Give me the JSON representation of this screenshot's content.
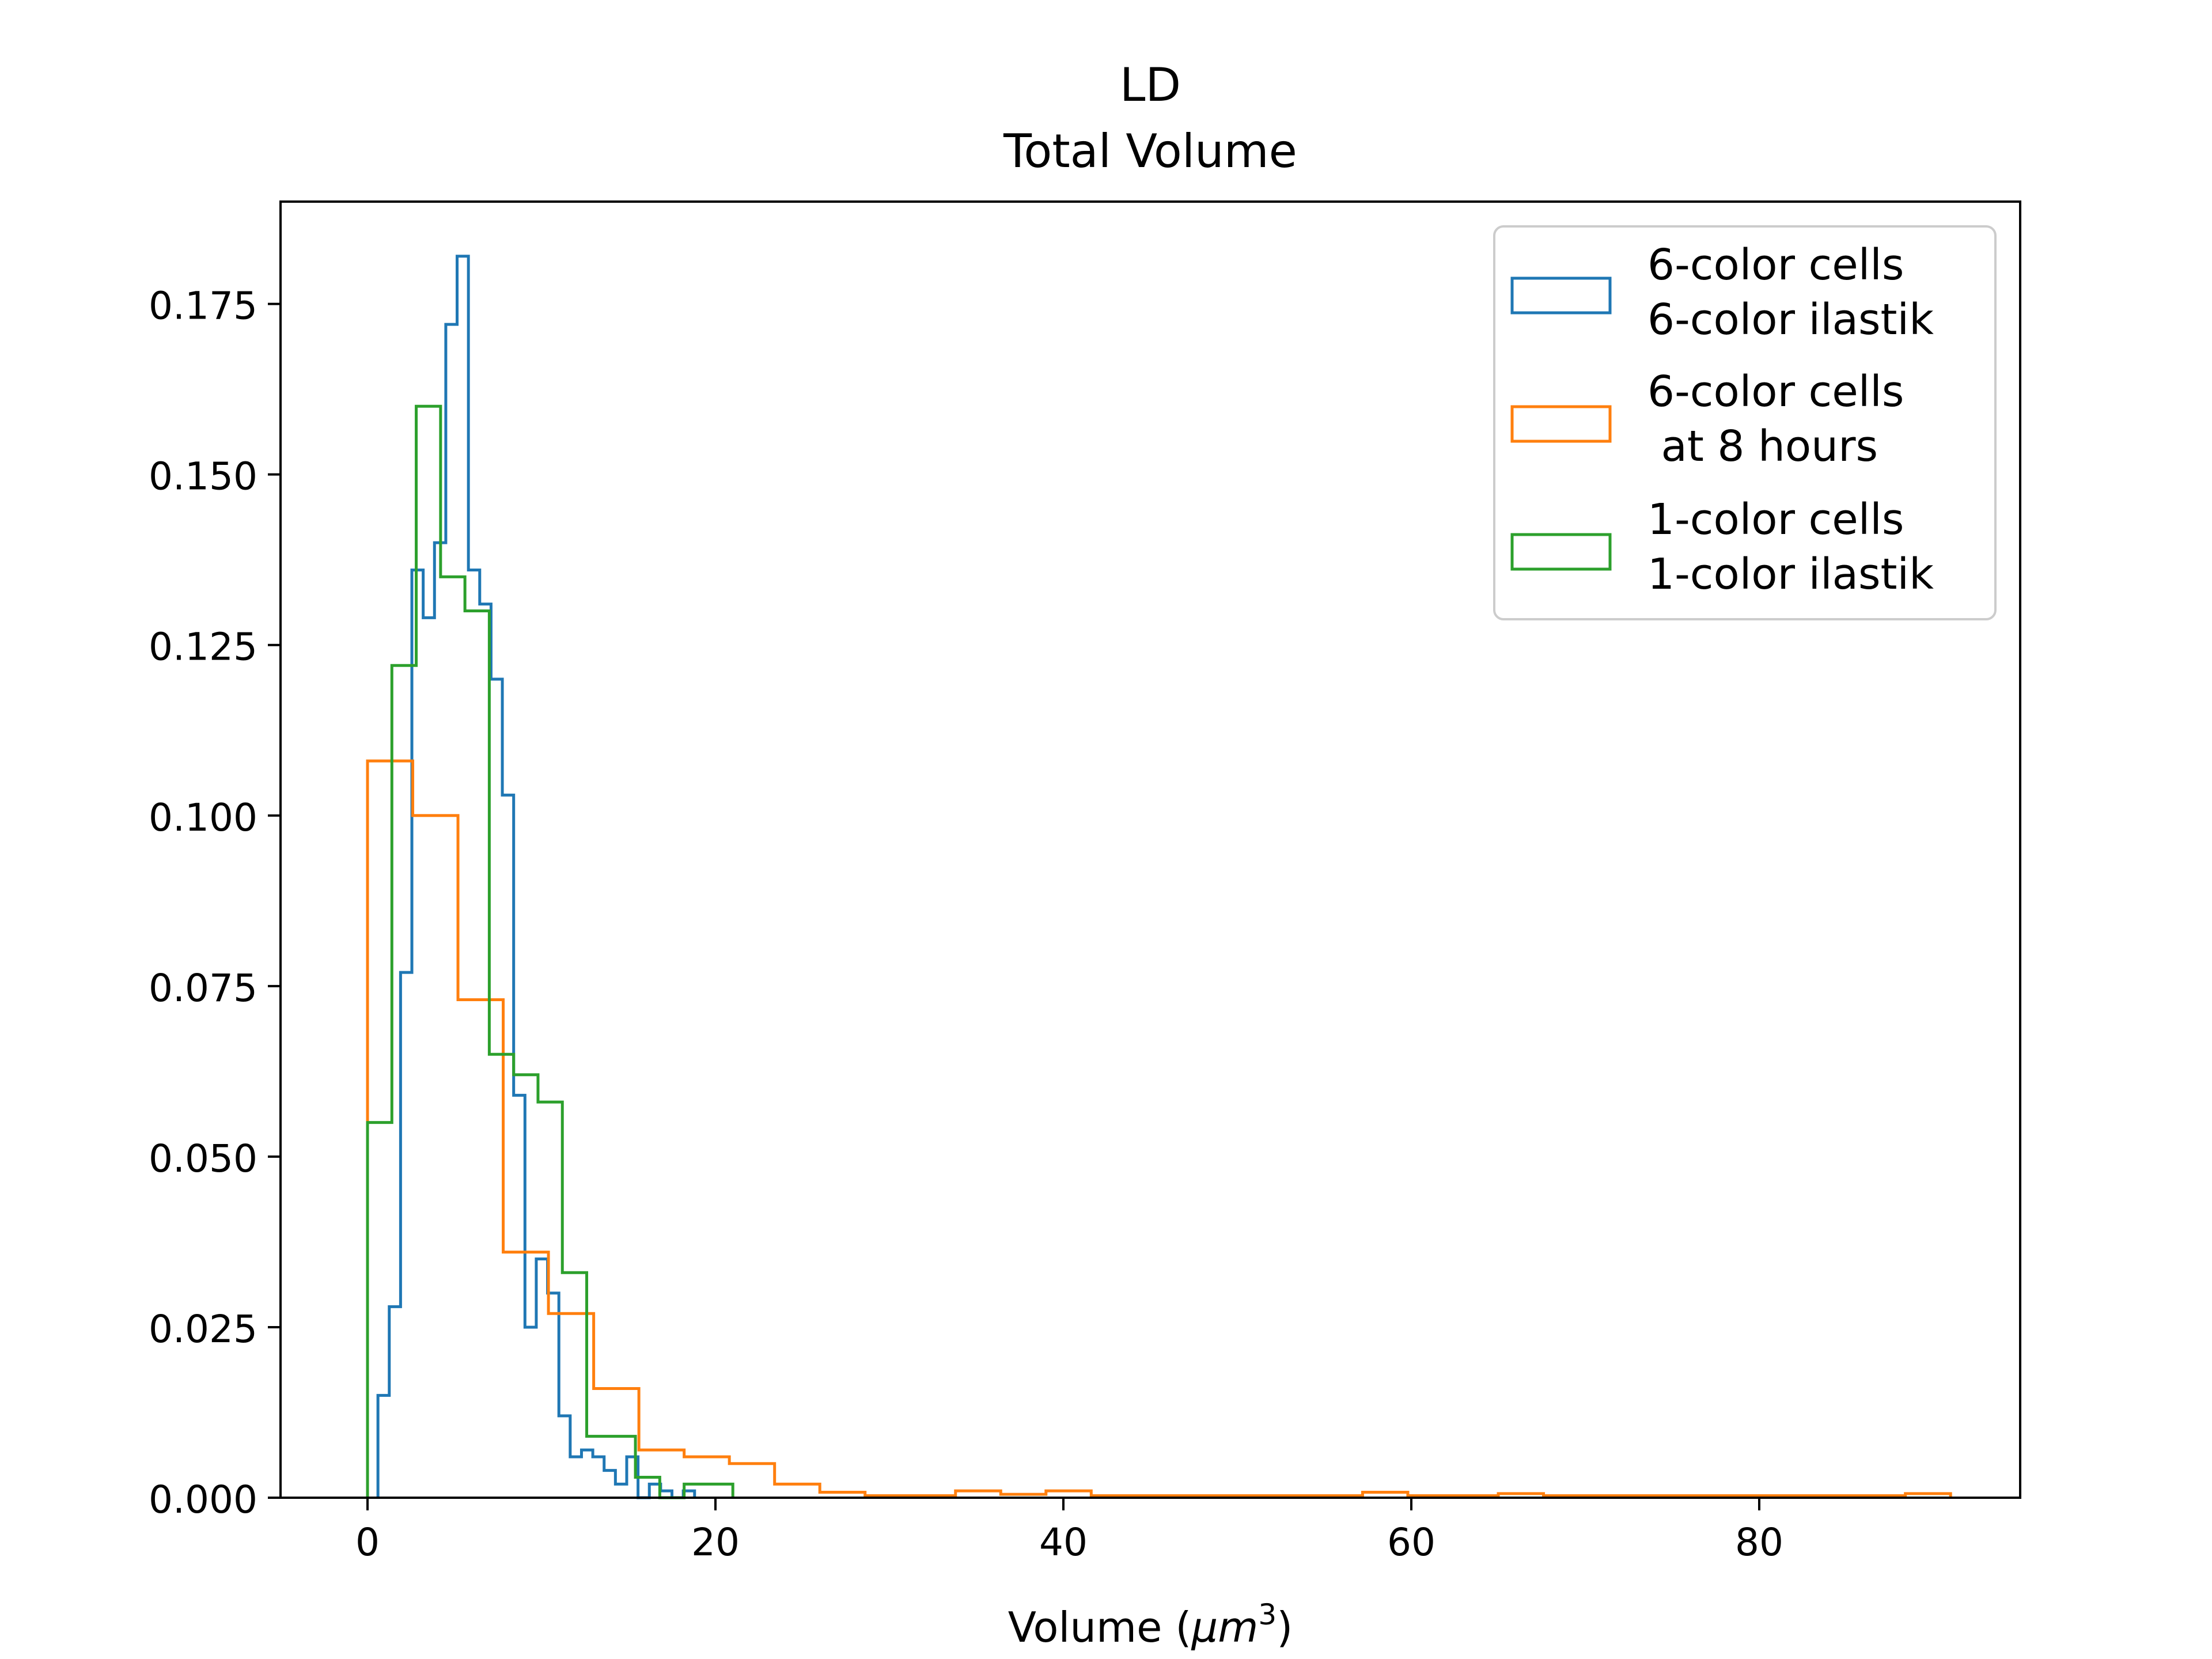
{
  "chart_data": {
    "type": "histogram",
    "title": "LD",
    "subtitle": "Total Volume",
    "xlabel_prefix": "Volume (",
    "xlabel_unit": "μm",
    "xlabel_exp": "3",
    "xlabel_suffix": ")",
    "ylabel": "",
    "xlim": [
      -5,
      95
    ],
    "ylim": [
      0,
      0.19
    ],
    "x_ticks": [
      0,
      20,
      40,
      60,
      80
    ],
    "x_tick_labels": [
      "0",
      "20",
      "40",
      "60",
      "80"
    ],
    "y_ticks": [
      0.0,
      0.025,
      0.05,
      0.075,
      0.1,
      0.125,
      0.15,
      0.175
    ],
    "y_tick_labels": [
      "0.000",
      "0.025",
      "0.050",
      "0.075",
      "0.100",
      "0.125",
      "0.150",
      "0.175"
    ],
    "grid": false,
    "legend_position": "top-right",
    "series": [
      {
        "name_line1": "6-color cells",
        "name_line2": "6-color ilastik",
        "color": "#1f77b4",
        "histtype": "step",
        "bins": [
          0.6,
          1.25,
          1.9,
          2.55,
          3.2,
          3.85,
          4.5,
          5.15,
          5.8,
          6.45,
          7.1,
          7.75,
          8.4,
          9.05,
          9.7,
          10.35,
          11.0,
          11.65,
          12.3,
          12.95,
          13.6,
          14.25,
          14.9,
          15.55,
          16.2,
          16.85,
          17.5,
          18.15,
          18.8
        ],
        "values": [
          0.015,
          0.028,
          0.077,
          0.136,
          0.129,
          0.14,
          0.172,
          0.182,
          0.136,
          0.131,
          0.12,
          0.103,
          0.059,
          0.025,
          0.035,
          0.03,
          0.012,
          0.006,
          0.007,
          0.006,
          0.004,
          0.002,
          0.006,
          0.0,
          0.002,
          0.001,
          0.0,
          0.001
        ]
      },
      {
        "name_line1": "6-color cells",
        "name_line2": " at 8 hours",
        "color": "#ff7f0e",
        "histtype": "step",
        "bins": [
          0.0,
          2.6,
          5.2,
          7.8,
          10.4,
          13.0,
          15.6,
          18.2,
          20.8,
          23.4,
          26.0,
          28.6,
          31.2,
          33.8,
          36.4,
          39.0,
          41.6,
          44.2,
          46.8,
          49.4,
          52.0,
          54.6,
          57.2,
          59.8,
          62.4,
          65.0,
          67.6,
          70.2,
          72.8,
          75.4,
          78.0,
          80.6,
          83.2,
          85.8,
          88.4,
          91.0
        ],
        "values": [
          0.108,
          0.1,
          0.073,
          0.036,
          0.027,
          0.016,
          0.007,
          0.006,
          0.005,
          0.002,
          0.0008,
          0.0003,
          0.0003,
          0.001,
          0.0005,
          0.001,
          0.0003,
          0.0003,
          0.0003,
          0.0003,
          0.0003,
          0.0003,
          0.0008,
          0.0003,
          0.0003,
          0.0006,
          0.0003,
          0.0003,
          0.0003,
          0.0003,
          0.0003,
          0.0003,
          0.0003,
          0.0003,
          0.0006
        ]
      },
      {
        "name_line1": "1-color cells",
        "name_line2": "1-color ilastik",
        "color": "#2ca02c",
        "histtype": "step",
        "bins": [
          0.0,
          1.4,
          2.8,
          4.2,
          5.6,
          7.0,
          8.4,
          9.8,
          11.2,
          12.6,
          14.0,
          15.4,
          16.8,
          18.2,
          19.6,
          21.0
        ],
        "values": [
          0.055,
          0.122,
          0.16,
          0.135,
          0.13,
          0.065,
          0.062,
          0.058,
          0.033,
          0.009,
          0.009,
          0.003,
          0.0,
          0.002,
          0.002
        ]
      }
    ]
  }
}
